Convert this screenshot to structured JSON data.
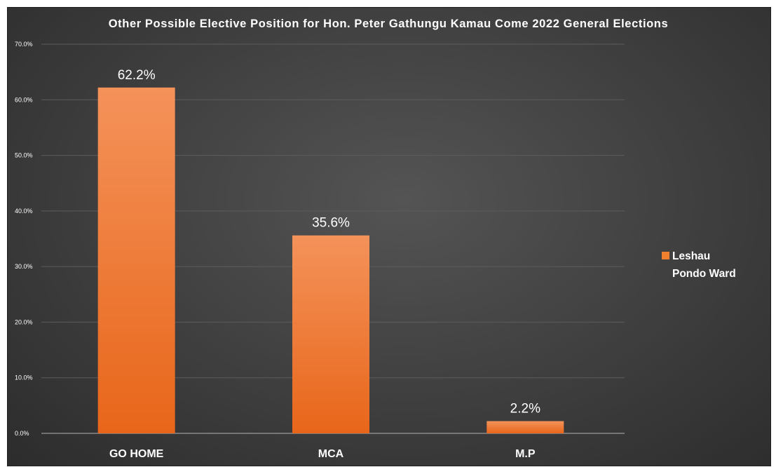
{
  "chart_data": {
    "type": "bar",
    "title": "Other Possible Elective Position for Hon. Peter Gathungu Kamau Come 2022 General Elections",
    "xlabel": "",
    "ylabel": "",
    "categories": [
      "GO HOME",
      "MCA",
      "M.P"
    ],
    "series": [
      {
        "name": "Leshau Pondo Ward",
        "values": [
          62.2,
          35.6,
          2.2
        ]
      }
    ],
    "data_labels": [
      "62.2%",
      "35.6%",
      "2.2%"
    ],
    "ylim": [
      0,
      70
    ],
    "yticks": [
      0,
      10,
      20,
      30,
      40,
      50,
      60,
      70
    ],
    "ytick_labels": [
      "0.0%",
      "10.0%",
      "20.0%",
      "30.0%",
      "40.0%",
      "50.0%",
      "60.0%",
      "70.0%"
    ],
    "legend": {
      "position": "right",
      "lines": [
        "Leshau",
        "Pondo Ward"
      ]
    },
    "grid": true,
    "colors": {
      "bar_top": "#f4925a",
      "bar_bottom": "#e8661a",
      "legend_swatch": "#f07f2e"
    }
  }
}
